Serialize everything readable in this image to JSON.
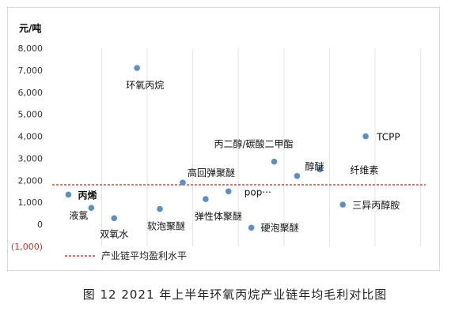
{
  "figure_caption": "图 12  2021 年上半年环氧丙烷产业链年均毛利对比图",
  "chart_data": {
    "type": "scatter",
    "title": "",
    "ylabel": "元/吨",
    "xlabel": "",
    "ylim": [
      -1000,
      8000
    ],
    "yticks": [
      -1000,
      0,
      1000,
      2000,
      3000,
      4000,
      5000,
      6000,
      7000,
      8000
    ],
    "ytick_labels": [
      "(1,000)",
      "0",
      "1,000",
      "2,000",
      "3,000",
      "4,000",
      "5,000",
      "6,000",
      "7,000",
      "8,000"
    ],
    "grid": "vertical",
    "point_color": "#5b8fc9",
    "points": [
      {
        "label": "丙烯",
        "x": 1,
        "y": 1350
      },
      {
        "label": "液氯",
        "x": 2,
        "y": 750
      },
      {
        "label": "双氧水",
        "x": 3,
        "y": 280
      },
      {
        "label": "环氧丙烷",
        "x": 4,
        "y": 7100
      },
      {
        "label": "软泡聚醚",
        "x": 5,
        "y": 700
      },
      {
        "label": "高回弹聚醚",
        "x": 6,
        "y": 1900
      },
      {
        "label": "弹性体聚醚",
        "x": 7,
        "y": 1150
      },
      {
        "label": "pop···",
        "x": 8,
        "y": 1500
      },
      {
        "label": "硬泡聚醚",
        "x": 9,
        "y": -150
      },
      {
        "label": "丙二醇/碳酸二甲酯",
        "x": 10,
        "y": 2850
      },
      {
        "label": "醇醚",
        "x": 11,
        "y": 2200
      },
      {
        "label": "纤维素",
        "x": 12,
        "y": 2500
      },
      {
        "label": "三异丙醇胺",
        "x": 13,
        "y": 900
      },
      {
        "label": "TCPP",
        "x": 14,
        "y": 4000
      }
    ],
    "reference_line": {
      "name": "产业链平均盈利水平",
      "y": 1800,
      "color": "#e03c31",
      "style": "dashed"
    },
    "legend": {
      "position": "bottom-left",
      "entries": [
        "产业链平均盈利水平"
      ]
    }
  }
}
